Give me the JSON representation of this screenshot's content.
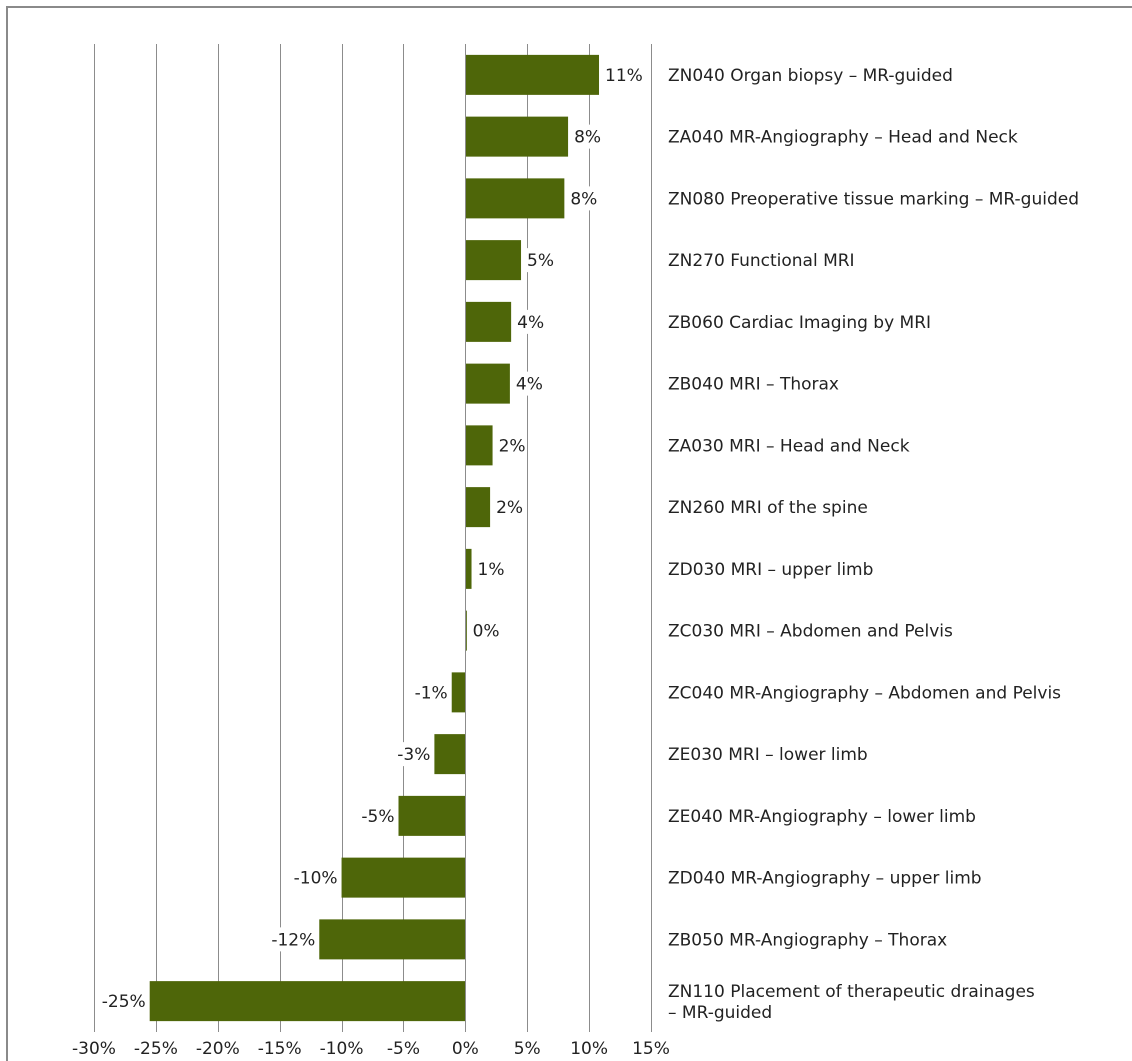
{
  "colors": {
    "bar": "#4e6609",
    "grid": "#8c8c8c",
    "text": "#222222",
    "background": "#ffffff"
  },
  "chart_data": {
    "type": "bar",
    "orientation": "horizontal",
    "title": "",
    "xlabel": "",
    "ylabel": "",
    "xlim": [
      -30,
      15
    ],
    "x_ticks": [
      -30,
      -25,
      -20,
      -15,
      -10,
      -5,
      0,
      5,
      10,
      15
    ],
    "x_tick_labels": [
      "-30%",
      "-25%",
      "-20%",
      "-15%",
      "-10%",
      "-5%",
      "0%",
      "5%",
      "10%",
      "15%"
    ],
    "grid": true,
    "legend": "none",
    "categories": [
      "ZN040 Organ biopsy – MR-guided",
      "ZA040 MR-Angiography – Head and Neck",
      "ZN080 Preoperative tissue marking – MR-guided",
      "ZN270 Functional MRI",
      "ZB060 Cardiac Imaging by MRI",
      "ZB040 MRI – Thorax",
      "ZA030 MRI – Head and Neck",
      "ZN260 MRI of the spine",
      "ZD030 MRI – upper limb",
      "ZC030 MRI – Abdomen and Pelvis",
      "ZC040 MR-Angiography – Abdomen and Pelvis",
      "ZE030 MRI – lower limb",
      "ZE040 MR-Angiography – lower limb",
      "ZD040 MR-Angiography – upper limb",
      "ZB050 MR-Angiography – Thorax",
      "ZN110 Placement of therapeutic drainages – MR-guided"
    ],
    "values": [
      10.8,
      8.3,
      8.0,
      4.5,
      3.7,
      3.6,
      2.2,
      2.0,
      0.5,
      0.1,
      -1.1,
      -2.5,
      -5.4,
      -10.0,
      -11.8,
      -25.5
    ],
    "data_labels": [
      "11%",
      "8%",
      "8%",
      "5%",
      "4%",
      "4%",
      "2%",
      "2%",
      "1%",
      "0%",
      "-1%",
      "-3%",
      "-5%",
      "-10%",
      "-12%",
      "-25%"
    ]
  }
}
